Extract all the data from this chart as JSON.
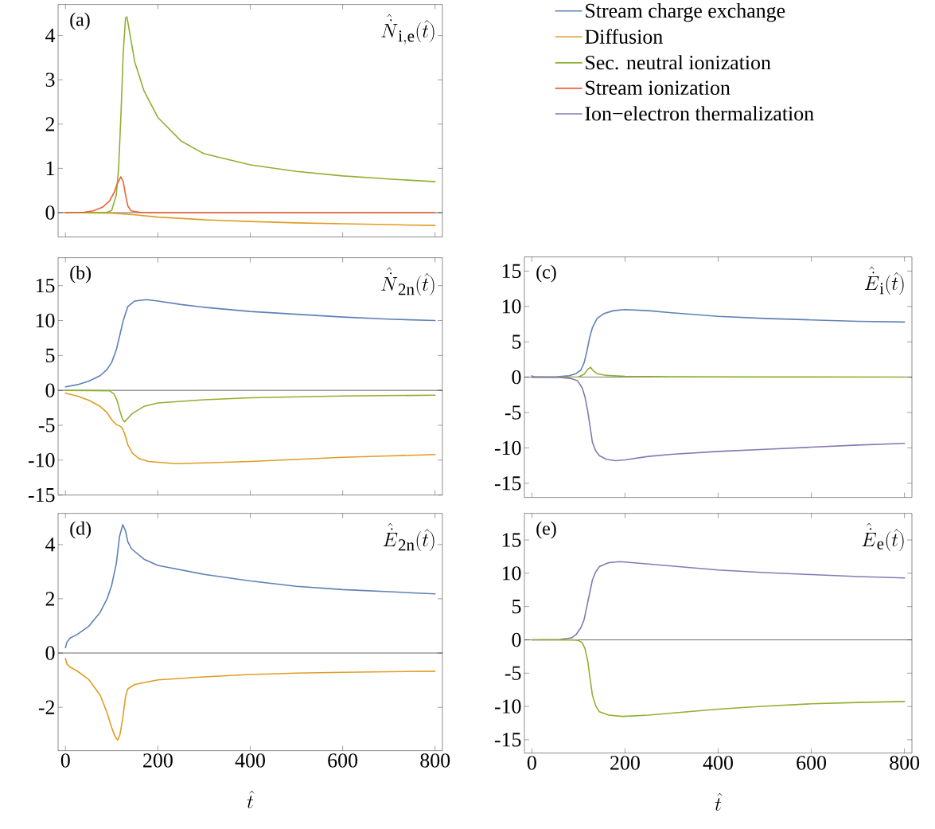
{
  "chart_data": [
    {
      "type": "line",
      "title": "\\hat{\\dot{N}}_{\\mathrm{i,e}}(\\hat{t})",
      "annotations": [
        "(a)"
      ],
      "xlim": [
        -16,
        816
      ],
      "ylim": [
        -0.55,
        4.7
      ],
      "xticks": [
        0,
        200,
        400,
        600,
        800
      ],
      "yticks": [
        0,
        1,
        2,
        3,
        4
      ],
      "tick_labels": "y",
      "legend": "right",
      "ref_lines": [
        {
          "axis": "y",
          "value": 0,
          "color": "#000000"
        }
      ],
      "series": [
        {
          "name": "Diffusion",
          "color": "#e19c24",
          "x": [
            0,
            100,
            150,
            200,
            300,
            400,
            500,
            600,
            700,
            800
          ],
          "values": [
            0,
            -0.01,
            -0.05,
            -0.1,
            -0.16,
            -0.2,
            -0.23,
            -0.25,
            -0.27,
            -0.29
          ]
        },
        {
          "name": "Sec. neutral ionization",
          "color": "#8fb032",
          "x": [
            0,
            50,
            90,
            100,
            110,
            115,
            120,
            125,
            130,
            133,
            140,
            150,
            170,
            200,
            250,
            300,
            400,
            500,
            600,
            700,
            800
          ],
          "values": [
            0,
            0,
            0.01,
            0.05,
            0.4,
            1.0,
            2.2,
            3.6,
            4.4,
            4.42,
            4.0,
            3.4,
            2.75,
            2.15,
            1.62,
            1.33,
            1.08,
            0.93,
            0.83,
            0.76,
            0.7
          ]
        },
        {
          "name": "Stream ionization",
          "color": "#eb6235",
          "x": [
            0,
            40,
            60,
            80,
            95,
            105,
            112,
            120,
            125,
            130,
            135,
            142,
            160,
            200,
            800
          ],
          "values": [
            0,
            0.01,
            0.04,
            0.12,
            0.26,
            0.45,
            0.65,
            0.81,
            0.7,
            0.4,
            0.15,
            0.04,
            0.01,
            0,
            0
          ]
        }
      ]
    },
    {
      "type": "line",
      "title": "\\hat{\\dot{N}}_{\\mathrm{2n}}(\\hat{t})",
      "annotations": [
        "(b)"
      ],
      "xlim": [
        -16,
        816
      ],
      "ylim": [
        -15,
        19
      ],
      "xticks": [
        0,
        200,
        400,
        600,
        800
      ],
      "yticks": [
        -15,
        -10,
        -5,
        0,
        5,
        10,
        15
      ],
      "tick_labels": "y",
      "ref_lines": [
        {
          "axis": "y",
          "value": 0,
          "color": "#000000"
        }
      ],
      "series": [
        {
          "name": "Stream charge exchange",
          "color": "#5e81b5",
          "x": [
            0,
            25,
            50,
            75,
            90,
            100,
            110,
            118,
            125,
            135,
            150,
            175,
            200,
            250,
            300,
            400,
            500,
            600,
            700,
            800
          ],
          "values": [
            0.5,
            0.8,
            1.3,
            2.1,
            3.0,
            4.0,
            5.8,
            8.0,
            10.0,
            12.0,
            12.8,
            13.0,
            12.8,
            12.3,
            11.9,
            11.3,
            10.9,
            10.5,
            10.2,
            10.0
          ]
        },
        {
          "name": "Diffusion",
          "color": "#e19c24",
          "x": [
            0,
            25,
            50,
            75,
            90,
            100,
            110,
            117,
            122,
            128,
            135,
            145,
            160,
            180,
            240,
            300,
            400,
            500,
            600,
            700,
            800
          ],
          "values": [
            -0.4,
            -0.8,
            -1.4,
            -2.3,
            -3.2,
            -4.2,
            -4.9,
            -5.1,
            -5.3,
            -6.2,
            -7.8,
            -9.0,
            -9.8,
            -10.2,
            -10.5,
            -10.4,
            -10.2,
            -9.9,
            -9.6,
            -9.4,
            -9.2
          ]
        },
        {
          "name": "Sec. neutral ionization",
          "color": "#8fb032",
          "x": [
            0,
            95,
            105,
            112,
            118,
            124,
            128,
            135,
            145,
            170,
            200,
            300,
            400,
            600,
            800
          ],
          "values": [
            0,
            -0.05,
            -0.5,
            -1.5,
            -3.0,
            -4.2,
            -4.5,
            -4.0,
            -3.3,
            -2.3,
            -1.8,
            -1.35,
            -1.07,
            -0.8,
            -0.7
          ]
        }
      ]
    },
    {
      "type": "line",
      "title": "\\hat{\\dot{E}}_{\\mathrm{i}}(\\hat{t})",
      "annotations": [
        "(c)"
      ],
      "xlim": [
        -16,
        816
      ],
      "ylim": [
        -17,
        17
      ],
      "xticks": [
        0,
        200,
        400,
        600,
        800
      ],
      "yticks": [
        -15,
        -10,
        -5,
        0,
        5,
        10,
        15
      ],
      "tick_labels": "y",
      "ref_lines": [
        {
          "axis": "y",
          "value": 0,
          "color": "#000000"
        }
      ],
      "series": [
        {
          "name": "Stream charge exchange",
          "color": "#5e81b5",
          "x": [
            0,
            5,
            50,
            80,
            95,
            105,
            112,
            118,
            124,
            130,
            140,
            155,
            175,
            200,
            250,
            300,
            400,
            500,
            600,
            700,
            800
          ],
          "values": [
            0.2,
            0.05,
            0.05,
            0.2,
            0.5,
            1.0,
            2.0,
            3.6,
            5.6,
            7.0,
            8.3,
            9.0,
            9.4,
            9.55,
            9.4,
            9.1,
            8.6,
            8.3,
            8.1,
            7.9,
            7.8
          ]
        },
        {
          "name": "Sec. neutral ionization",
          "color": "#8fb032",
          "x": [
            0,
            100,
            112,
            120,
            126,
            132,
            140,
            160,
            200,
            300,
            500,
            800
          ],
          "values": [
            0,
            0.05,
            0.4,
            1.1,
            1.4,
            0.9,
            0.5,
            0.25,
            0.12,
            0.06,
            0.03,
            0.02
          ]
        },
        {
          "name": "Ion−electron thermalization",
          "color": "#8778b3",
          "x": [
            0,
            60,
            85,
            98,
            108,
            114,
            120,
            125,
            130,
            137,
            145,
            160,
            180,
            200,
            250,
            300,
            400,
            500,
            600,
            700,
            800
          ],
          "values": [
            0,
            -0.05,
            -0.2,
            -0.5,
            -1.5,
            -2.8,
            -4.8,
            -7.0,
            -9.2,
            -10.4,
            -11.1,
            -11.6,
            -11.8,
            -11.7,
            -11.2,
            -10.9,
            -10.5,
            -10.2,
            -9.9,
            -9.6,
            -9.35
          ]
        }
      ]
    },
    {
      "type": "line",
      "title": "\\hat{\\dot{E}}_{\\mathrm{2n}}(\\hat{t})",
      "xlabel": "\\hat{t}",
      "annotations": [
        "(d)"
      ],
      "xlim": [
        -16,
        816
      ],
      "ylim": [
        -3.6,
        5.15
      ],
      "xticks": [
        0,
        200,
        400,
        600,
        800
      ],
      "yticks": [
        -2,
        0,
        2,
        4
      ],
      "ref_lines": [
        {
          "axis": "y",
          "value": 0,
          "color": "#000000"
        }
      ],
      "series": [
        {
          "name": "Stream charge exchange",
          "color": "#5e81b5",
          "x": [
            0,
            3,
            10,
            25,
            50,
            75,
            90,
            100,
            110,
            117,
            124,
            130,
            135,
            143,
            170,
            200,
            300,
            400,
            500,
            600,
            700,
            800
          ],
          "values": [
            0.2,
            0.4,
            0.55,
            0.68,
            0.98,
            1.5,
            2.0,
            2.5,
            3.3,
            4.3,
            4.73,
            4.5,
            4.1,
            3.84,
            3.46,
            3.23,
            2.9,
            2.66,
            2.46,
            2.34,
            2.26,
            2.18
          ]
        },
        {
          "name": "Diffusion",
          "color": "#e19c24",
          "x": [
            0,
            3,
            10,
            25,
            50,
            75,
            90,
            100,
            108,
            113,
            118,
            124,
            130,
            135,
            150,
            200,
            300,
            400,
            500,
            600,
            700,
            800
          ],
          "values": [
            -0.2,
            -0.4,
            -0.52,
            -0.66,
            -0.97,
            -1.55,
            -2.2,
            -2.75,
            -3.1,
            -3.21,
            -3.0,
            -2.4,
            -1.6,
            -1.32,
            -1.16,
            -0.99,
            -0.88,
            -0.79,
            -0.74,
            -0.71,
            -0.69,
            -0.67
          ]
        }
      ]
    },
    {
      "type": "line",
      "title": "\\hat{\\dot{E}}_{\\mathrm{e}}(\\hat{t})",
      "xlabel": "\\hat{t}",
      "annotations": [
        "(e)"
      ],
      "xlim": [
        -16,
        816
      ],
      "ylim": [
        -17,
        19
      ],
      "xticks": [
        0,
        200,
        400,
        600,
        800
      ],
      "yticks": [
        -15,
        -10,
        -5,
        0,
        5,
        10,
        15
      ],
      "ref_lines": [
        {
          "axis": "y",
          "value": 0,
          "color": "#000000"
        }
      ],
      "series": [
        {
          "name": "Ion−electron thermalization",
          "color": "#8778b3",
          "x": [
            0,
            60,
            85,
            95,
            105,
            112,
            118,
            124,
            130,
            137,
            145,
            165,
            190,
            250,
            300,
            400,
            500,
            600,
            700,
            800
          ],
          "values": [
            0,
            0.05,
            0.3,
            0.8,
            1.8,
            3.0,
            5.0,
            7.0,
            9.0,
            10.2,
            11.0,
            11.6,
            11.75,
            11.4,
            11.1,
            10.5,
            10.1,
            9.8,
            9.5,
            9.3
          ]
        },
        {
          "name": "Sec. neutral ionization",
          "color": "#8fb032",
          "x": [
            0,
            90,
            100,
            108,
            114,
            120,
            125,
            130,
            137,
            145,
            165,
            195,
            250,
            300,
            400,
            500,
            600,
            700,
            800
          ],
          "values": [
            0,
            -0.02,
            -0.1,
            -0.4,
            -1.3,
            -3.2,
            -5.8,
            -8.3,
            -9.9,
            -10.8,
            -11.3,
            -11.5,
            -11.3,
            -11.0,
            -10.4,
            -9.95,
            -9.6,
            -9.4,
            -9.25
          ]
        }
      ]
    }
  ]
}
